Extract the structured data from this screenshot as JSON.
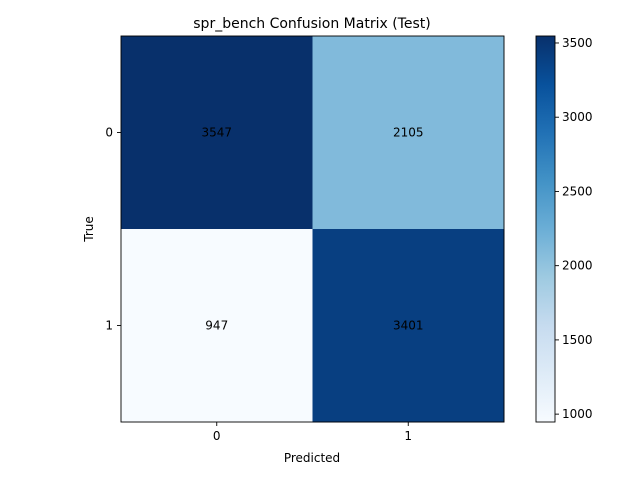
{
  "chart_data": {
    "type": "heatmap",
    "title": "spr_bench Confusion Matrix (Test)",
    "xlabel": "Predicted",
    "ylabel": "True",
    "x_categories": [
      "0",
      "1"
    ],
    "y_categories": [
      "0",
      "1"
    ],
    "values": [
      [
        3547,
        2105
      ],
      [
        947,
        3401
      ]
    ],
    "colormap": "Blues",
    "colorbar": {
      "ticks": [
        1000,
        1500,
        2000,
        2500,
        3000,
        3500
      ],
      "tick_labels": [
        "1000",
        "1500",
        "2000",
        "2500",
        "3000",
        "3500"
      ],
      "vmin": 947,
      "vmax": 3547
    },
    "grid": false
  }
}
